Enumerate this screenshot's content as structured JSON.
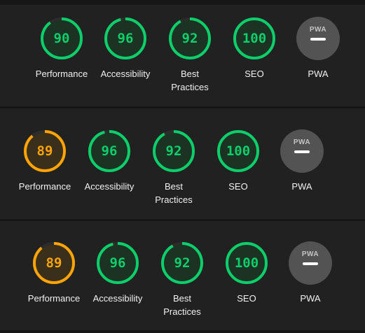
{
  "colors": {
    "pass": "#0cce6b",
    "pass_fill": "#1c3324",
    "average": "#ffa400",
    "average_fill": "#3a2f1a",
    "track": "#2c2c2c",
    "pwa_badge": "#535353"
  },
  "reports": [
    {
      "performance": {
        "score": "90",
        "value": 90,
        "label": "Performance"
      },
      "accessibility": {
        "score": "96",
        "value": 96,
        "label": "Accessibility"
      },
      "best_practices": {
        "score": "92",
        "value": 92,
        "label_1": "Best",
        "label_2": "Practices"
      },
      "seo": {
        "score": "100",
        "value": 100,
        "label": "SEO"
      },
      "pwa": {
        "badge": "PWA",
        "label": "PWA",
        "icon": "pwa-dash-icon"
      }
    },
    {
      "performance": {
        "score": "89",
        "value": 89,
        "label": "Performance"
      },
      "accessibility": {
        "score": "96",
        "value": 96,
        "label": "Accessibility"
      },
      "best_practices": {
        "score": "92",
        "value": 92,
        "label_1": "Best",
        "label_2": "Practices"
      },
      "seo": {
        "score": "100",
        "value": 100,
        "label": "SEO"
      },
      "pwa": {
        "badge": "PWA",
        "label": "PWA",
        "icon": "pwa-dash-icon"
      }
    },
    {
      "performance": {
        "score": "89",
        "value": 89,
        "label": "Performance"
      },
      "accessibility": {
        "score": "96",
        "value": 96,
        "label": "Accessibility"
      },
      "best_practices": {
        "score": "92",
        "value": 92,
        "label_1": "Best",
        "label_2": "Practices"
      },
      "seo": {
        "score": "100",
        "value": 100,
        "label": "SEO"
      },
      "pwa": {
        "badge": "PWA",
        "label": "PWA",
        "icon": "pwa-dash-icon"
      }
    }
  ]
}
